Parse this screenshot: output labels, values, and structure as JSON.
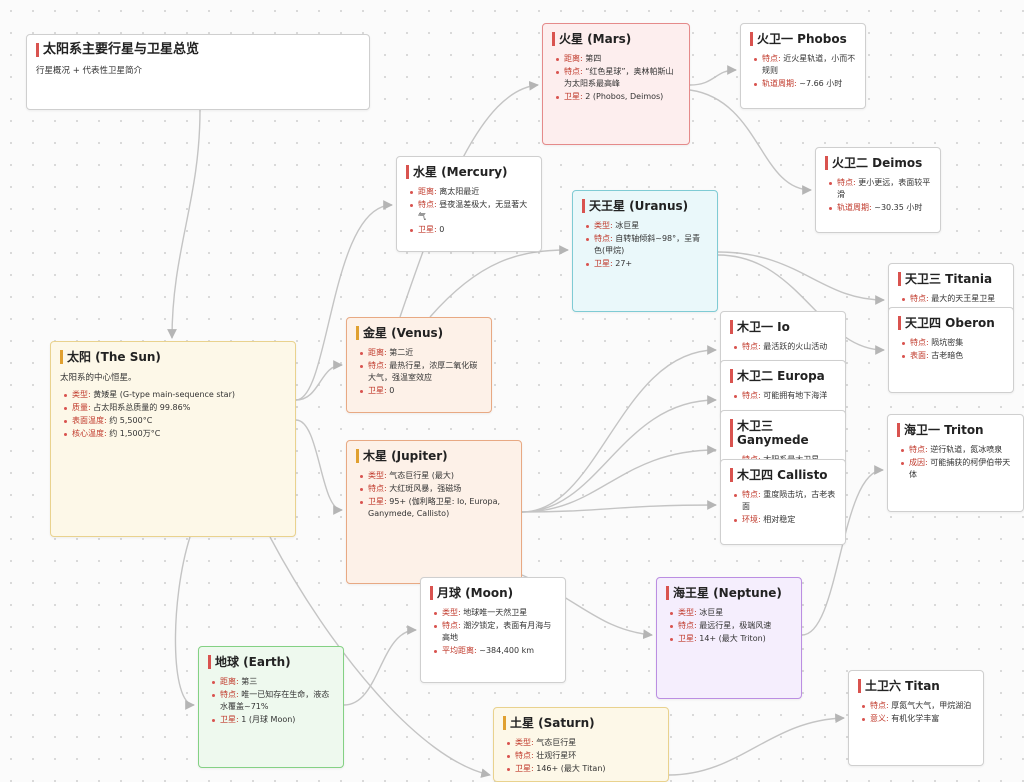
{
  "nodes": [
    {
      "title": "太阳系主要行星与卫星总览",
      "desc": "行星概况 + 代表性卫星简介"
    },
    {
      "title": "太阳 (The Sun)",
      "desc": "太阳系的中心恒星。",
      "items": [
        {
          "label": "类型:",
          "text": "黄矮星 (G-type main-sequence star)"
        },
        {
          "label": "质量:",
          "text": "占太阳系总质量的 99.86%"
        },
        {
          "label": "表面温度:",
          "text": "约 5,500°C"
        },
        {
          "label": "核心温度:",
          "text": "约 1,500万°C"
        }
      ]
    },
    {
      "title": "水星 (Mercury)",
      "items": [
        {
          "label": "距离:",
          "text": "离太阳最近"
        },
        {
          "label": "特点:",
          "text": "昼夜温差极大，无显著大气"
        },
        {
          "label": "卫星:",
          "text": "0"
        }
      ]
    },
    {
      "title": "金星 (Venus)",
      "items": [
        {
          "label": "距离:",
          "text": "第二近"
        },
        {
          "label": "特点:",
          "text": "最热行星，浓厚二氧化碳大气，强温室效应"
        },
        {
          "label": "卫星:",
          "text": "0"
        }
      ]
    },
    {
      "title": "木星 (Jupiter)",
      "items": [
        {
          "label": "类型:",
          "text": "气态巨行星 (最大)"
        },
        {
          "label": "特点:",
          "text": "大红斑风暴，强磁场"
        },
        {
          "label": "卫星:",
          "text": "95+ (伽利略卫星: Io, Europa, Ganymede, Callisto)"
        }
      ]
    },
    {
      "title": "地球 (Earth)",
      "items": [
        {
          "label": "距离:",
          "text": "第三"
        },
        {
          "label": "特点:",
          "text": "唯一已知存在生命，液态水覆盖~71%"
        },
        {
          "label": "卫星:",
          "text": "1 (月球 Moon)"
        }
      ]
    },
    {
      "title": "月球 (Moon)",
      "items": [
        {
          "label": "类型:",
          "text": "地球唯一天然卫星"
        },
        {
          "label": "特点:",
          "text": "潮汐锁定，表面有月海与高地"
        },
        {
          "label": "平均距离:",
          "text": "~384,400 km"
        }
      ]
    },
    {
      "title": "火星 (Mars)",
      "items": [
        {
          "label": "距离:",
          "text": "第四"
        },
        {
          "label": "特点:",
          "text": "“红色星球”，奥林帕斯山为太阳系最高峰"
        },
        {
          "label": "卫星:",
          "text": "2 (Phobos, Deimos)"
        }
      ]
    },
    {
      "title": "火卫一 Phobos",
      "items": [
        {
          "label": "特点:",
          "text": "近火星轨道，小而不规则"
        },
        {
          "label": "轨道周期:",
          "text": "~7.66 小时"
        }
      ]
    },
    {
      "title": "火卫二 Deimos",
      "items": [
        {
          "label": "特点:",
          "text": "更小更远，表面较平滑"
        },
        {
          "label": "轨道周期:",
          "text": "~30.35 小时"
        }
      ]
    },
    {
      "title": "天王星 (Uranus)",
      "items": [
        {
          "label": "类型:",
          "text": "冰巨星"
        },
        {
          "label": "特点:",
          "text": "自转轴倾斜~98°，呈青色(甲烷)"
        },
        {
          "label": "卫星:",
          "text": "27+"
        }
      ]
    },
    {
      "title": "天卫三 Titania",
      "items": [
        {
          "label": "特点:",
          "text": "最大的天王星卫星"
        }
      ]
    },
    {
      "title": "天卫四 Oberon",
      "items": [
        {
          "label": "特点:",
          "text": "陨坑密集"
        },
        {
          "label": "表面:",
          "text": "古老暗色"
        }
      ]
    },
    {
      "title": "木卫一 Io",
      "items": [
        {
          "label": "特点:",
          "text": "最活跃的火山活动"
        }
      ]
    },
    {
      "title": "木卫二 Europa",
      "items": [
        {
          "label": "特点:",
          "text": "可能拥有地下海洋"
        }
      ]
    },
    {
      "title": "木卫三 Ganymede",
      "items": [
        {
          "label": "特点:",
          "text": "太阳系最大卫星"
        }
      ]
    },
    {
      "title": "木卫四 Callisto",
      "items": [
        {
          "label": "特点:",
          "text": "重度陨击坑，古老表面"
        },
        {
          "label": "环境:",
          "text": "相对稳定"
        }
      ]
    },
    {
      "title": "海卫一 Triton",
      "items": [
        {
          "label": "特点:",
          "text": "逆行轨道，氮冰喷泉"
        },
        {
          "label": "成因:",
          "text": "可能捕获的柯伊伯带天体"
        }
      ]
    },
    {
      "title": "海王星 (Neptune)",
      "items": [
        {
          "label": "类型:",
          "text": "冰巨星"
        },
        {
          "label": "特点:",
          "text": "最远行星，极端风速"
        },
        {
          "label": "卫星:",
          "text": "14+ (最大 Triton)"
        }
      ]
    },
    {
      "title": "土星 (Saturn)",
      "items": [
        {
          "label": "类型:",
          "text": "气态巨行星"
        },
        {
          "label": "特点:",
          "text": "壮观行星环"
        },
        {
          "label": "卫星:",
          "text": "146+ (最大 Titan)"
        }
      ]
    },
    {
      "title": "土卫六 Titan",
      "items": [
        {
          "label": "特点:",
          "text": "厚氮气大气，甲烷湖泊"
        },
        {
          "label": "意义:",
          "text": "有机化学丰富"
        }
      ]
    }
  ]
}
